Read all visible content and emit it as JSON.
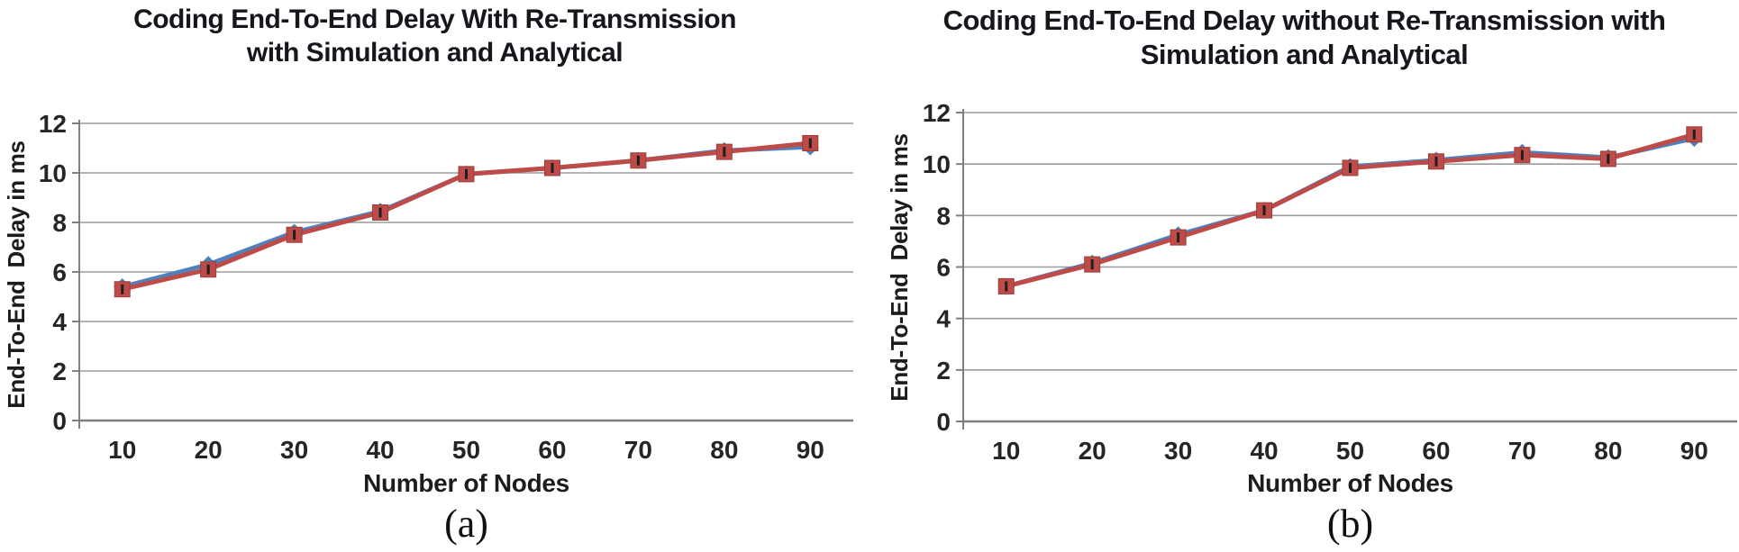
{
  "page": {
    "background": "#ffffff"
  },
  "colors": {
    "grid": "#9c9c9c",
    "axis": "#7f7f7f",
    "tick_text": "#252525",
    "title_text": "#16161d",
    "series_blue": "#4F81BD",
    "series_red": "#BE4B48",
    "marker_dash": "#1f1f1f"
  },
  "chart_data": [
    {
      "type": "line",
      "caption": "(a)",
      "title": "Coding End-To-End Delay With Re-Transmission with Simulation and Analytical",
      "title_line1": "Coding End-To-End Delay With Re-Transmission",
      "title_line2": "with Simulation and Analytical",
      "xlabel": "Number of Nodes",
      "ylabel": "End-To-End  Delay in ms",
      "categories": [
        10,
        20,
        30,
        40,
        50,
        60,
        70,
        80,
        90
      ],
      "ylim": [
        0,
        12
      ],
      "yticks": [
        0,
        2,
        4,
        6,
        8,
        10,
        12
      ],
      "grid": true,
      "legend": "none",
      "series": [
        {
          "name": "Simulation",
          "color": "#4F81BD",
          "marker": "diamond",
          "values": [
            5.4,
            6.3,
            7.6,
            8.45,
            9.95,
            10.2,
            10.5,
            10.9,
            11.05
          ]
        },
        {
          "name": "Analytical",
          "color": "#BE4B48",
          "marker": "square",
          "values": [
            5.3,
            6.1,
            7.5,
            8.4,
            9.95,
            10.2,
            10.5,
            10.85,
            11.2
          ]
        }
      ]
    },
    {
      "type": "line",
      "caption": "(b)",
      "title": "Coding End-To-End Delay without Re-Transmission with Simulation and Analytical",
      "title_line1": "Coding End-To-End Delay without Re-Transmission with",
      "title_line2": "Simulation and Analytical",
      "xlabel": "Number of Nodes",
      "ylabel": "End-To-End  Delay in ms",
      "categories": [
        10,
        20,
        30,
        40,
        50,
        60,
        70,
        80,
        90
      ],
      "ylim": [
        0,
        12
      ],
      "yticks": [
        0,
        2,
        4,
        6,
        8,
        10,
        12
      ],
      "grid": true,
      "legend": "none",
      "series": [
        {
          "name": "Simulation",
          "color": "#4F81BD",
          "marker": "diamond",
          "values": [
            5.25,
            6.15,
            7.25,
            8.2,
            9.9,
            10.15,
            10.45,
            10.25,
            11.0
          ]
        },
        {
          "name": "Analytical",
          "color": "#BE4B48",
          "marker": "square",
          "values": [
            5.25,
            6.1,
            7.15,
            8.2,
            9.85,
            10.1,
            10.35,
            10.2,
            11.15
          ]
        }
      ]
    }
  ]
}
